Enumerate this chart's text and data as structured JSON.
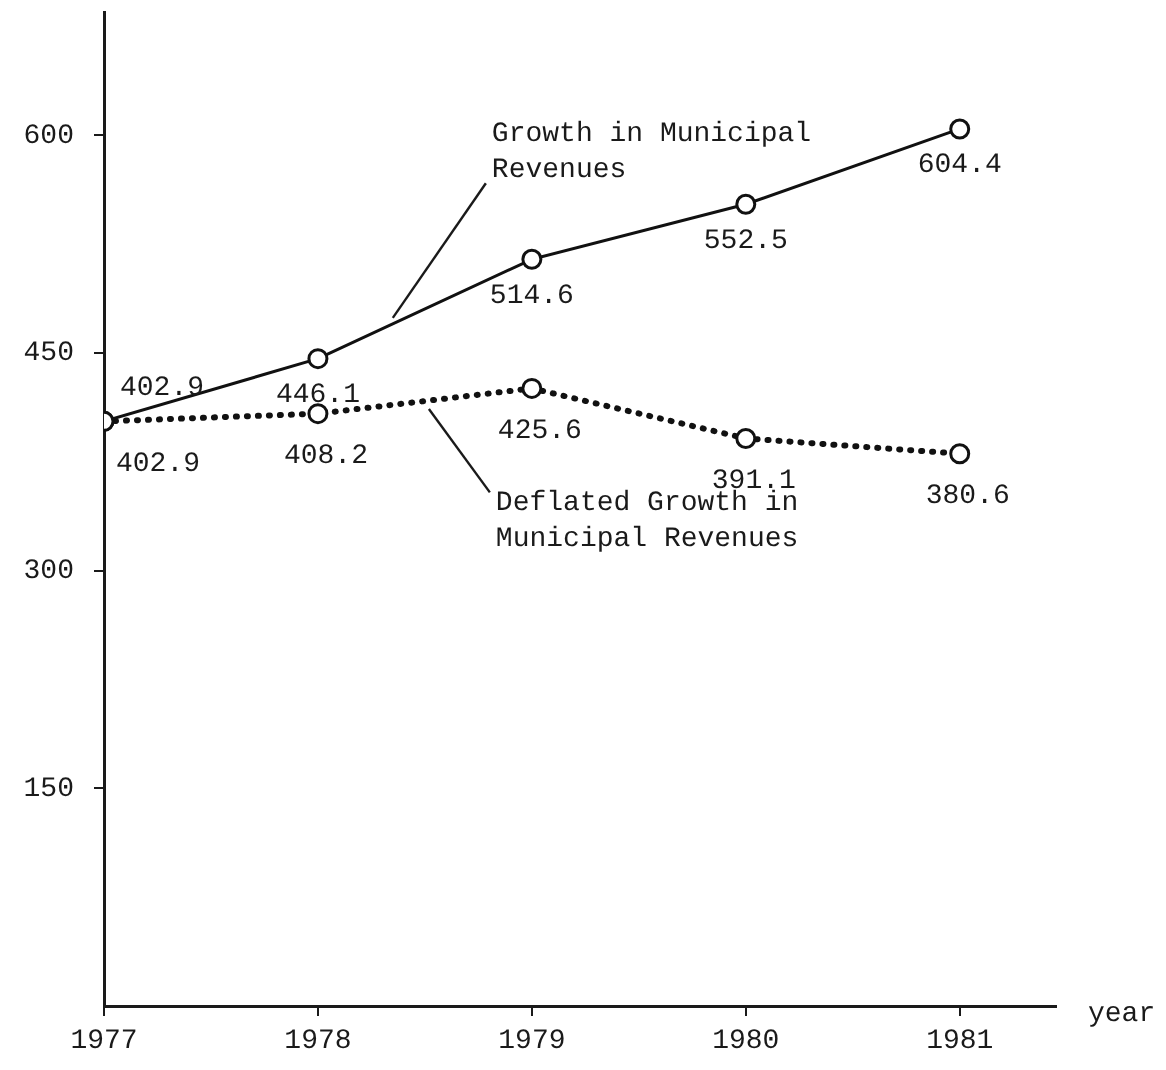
{
  "chart_data": {
    "type": "line",
    "xlabel": "year",
    "x": [
      1977,
      1978,
      1979,
      1980,
      1981
    ],
    "xlim": [
      1977,
      1981.45
    ],
    "xticks": [
      1977,
      1978,
      1979,
      1980,
      1981
    ],
    "ylim": [
      0,
      685
    ],
    "yticks": [
      150,
      300,
      450,
      600
    ],
    "series": [
      {
        "name": "Growth in Municipal Revenues",
        "color": "#111111",
        "values": [
          402.9,
          446.1,
          514.6,
          552.5,
          604.4
        ],
        "line_style": "solid"
      },
      {
        "name": "Deflated Growth in Municipal Revenues",
        "color": "#111111",
        "values": [
          402.9,
          408.2,
          425.6,
          391.1,
          380.6
        ],
        "line_style": "dotted"
      }
    ],
    "marker": "circle",
    "data_labels": true,
    "legend": false
  }
}
